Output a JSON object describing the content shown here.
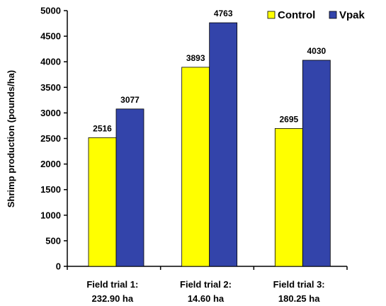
{
  "chart_data": {
    "type": "bar",
    "title": "",
    "xlabel": "",
    "ylabel": "Shrimp production (pounds/ha)",
    "ylim": [
      0,
      5000
    ],
    "yticks": [
      0,
      500,
      1000,
      1500,
      2000,
      2500,
      3000,
      3500,
      4000,
      4500,
      5000
    ],
    "grid": false,
    "legend_placement": "top-right",
    "categories": [
      [
        "Field trial 1:",
        "232.90 ha"
      ],
      [
        "Field trial 2:",
        "14.60 ha"
      ],
      [
        "Field trial 3:",
        "180.25 ha"
      ]
    ],
    "series": [
      {
        "name": "Control",
        "color": "#ffff00",
        "values": [
          2516,
          3893,
          2695
        ]
      },
      {
        "name": "Vpak",
        "color": "#3344aa",
        "values": [
          3077,
          4763,
          4030
        ]
      }
    ]
  }
}
